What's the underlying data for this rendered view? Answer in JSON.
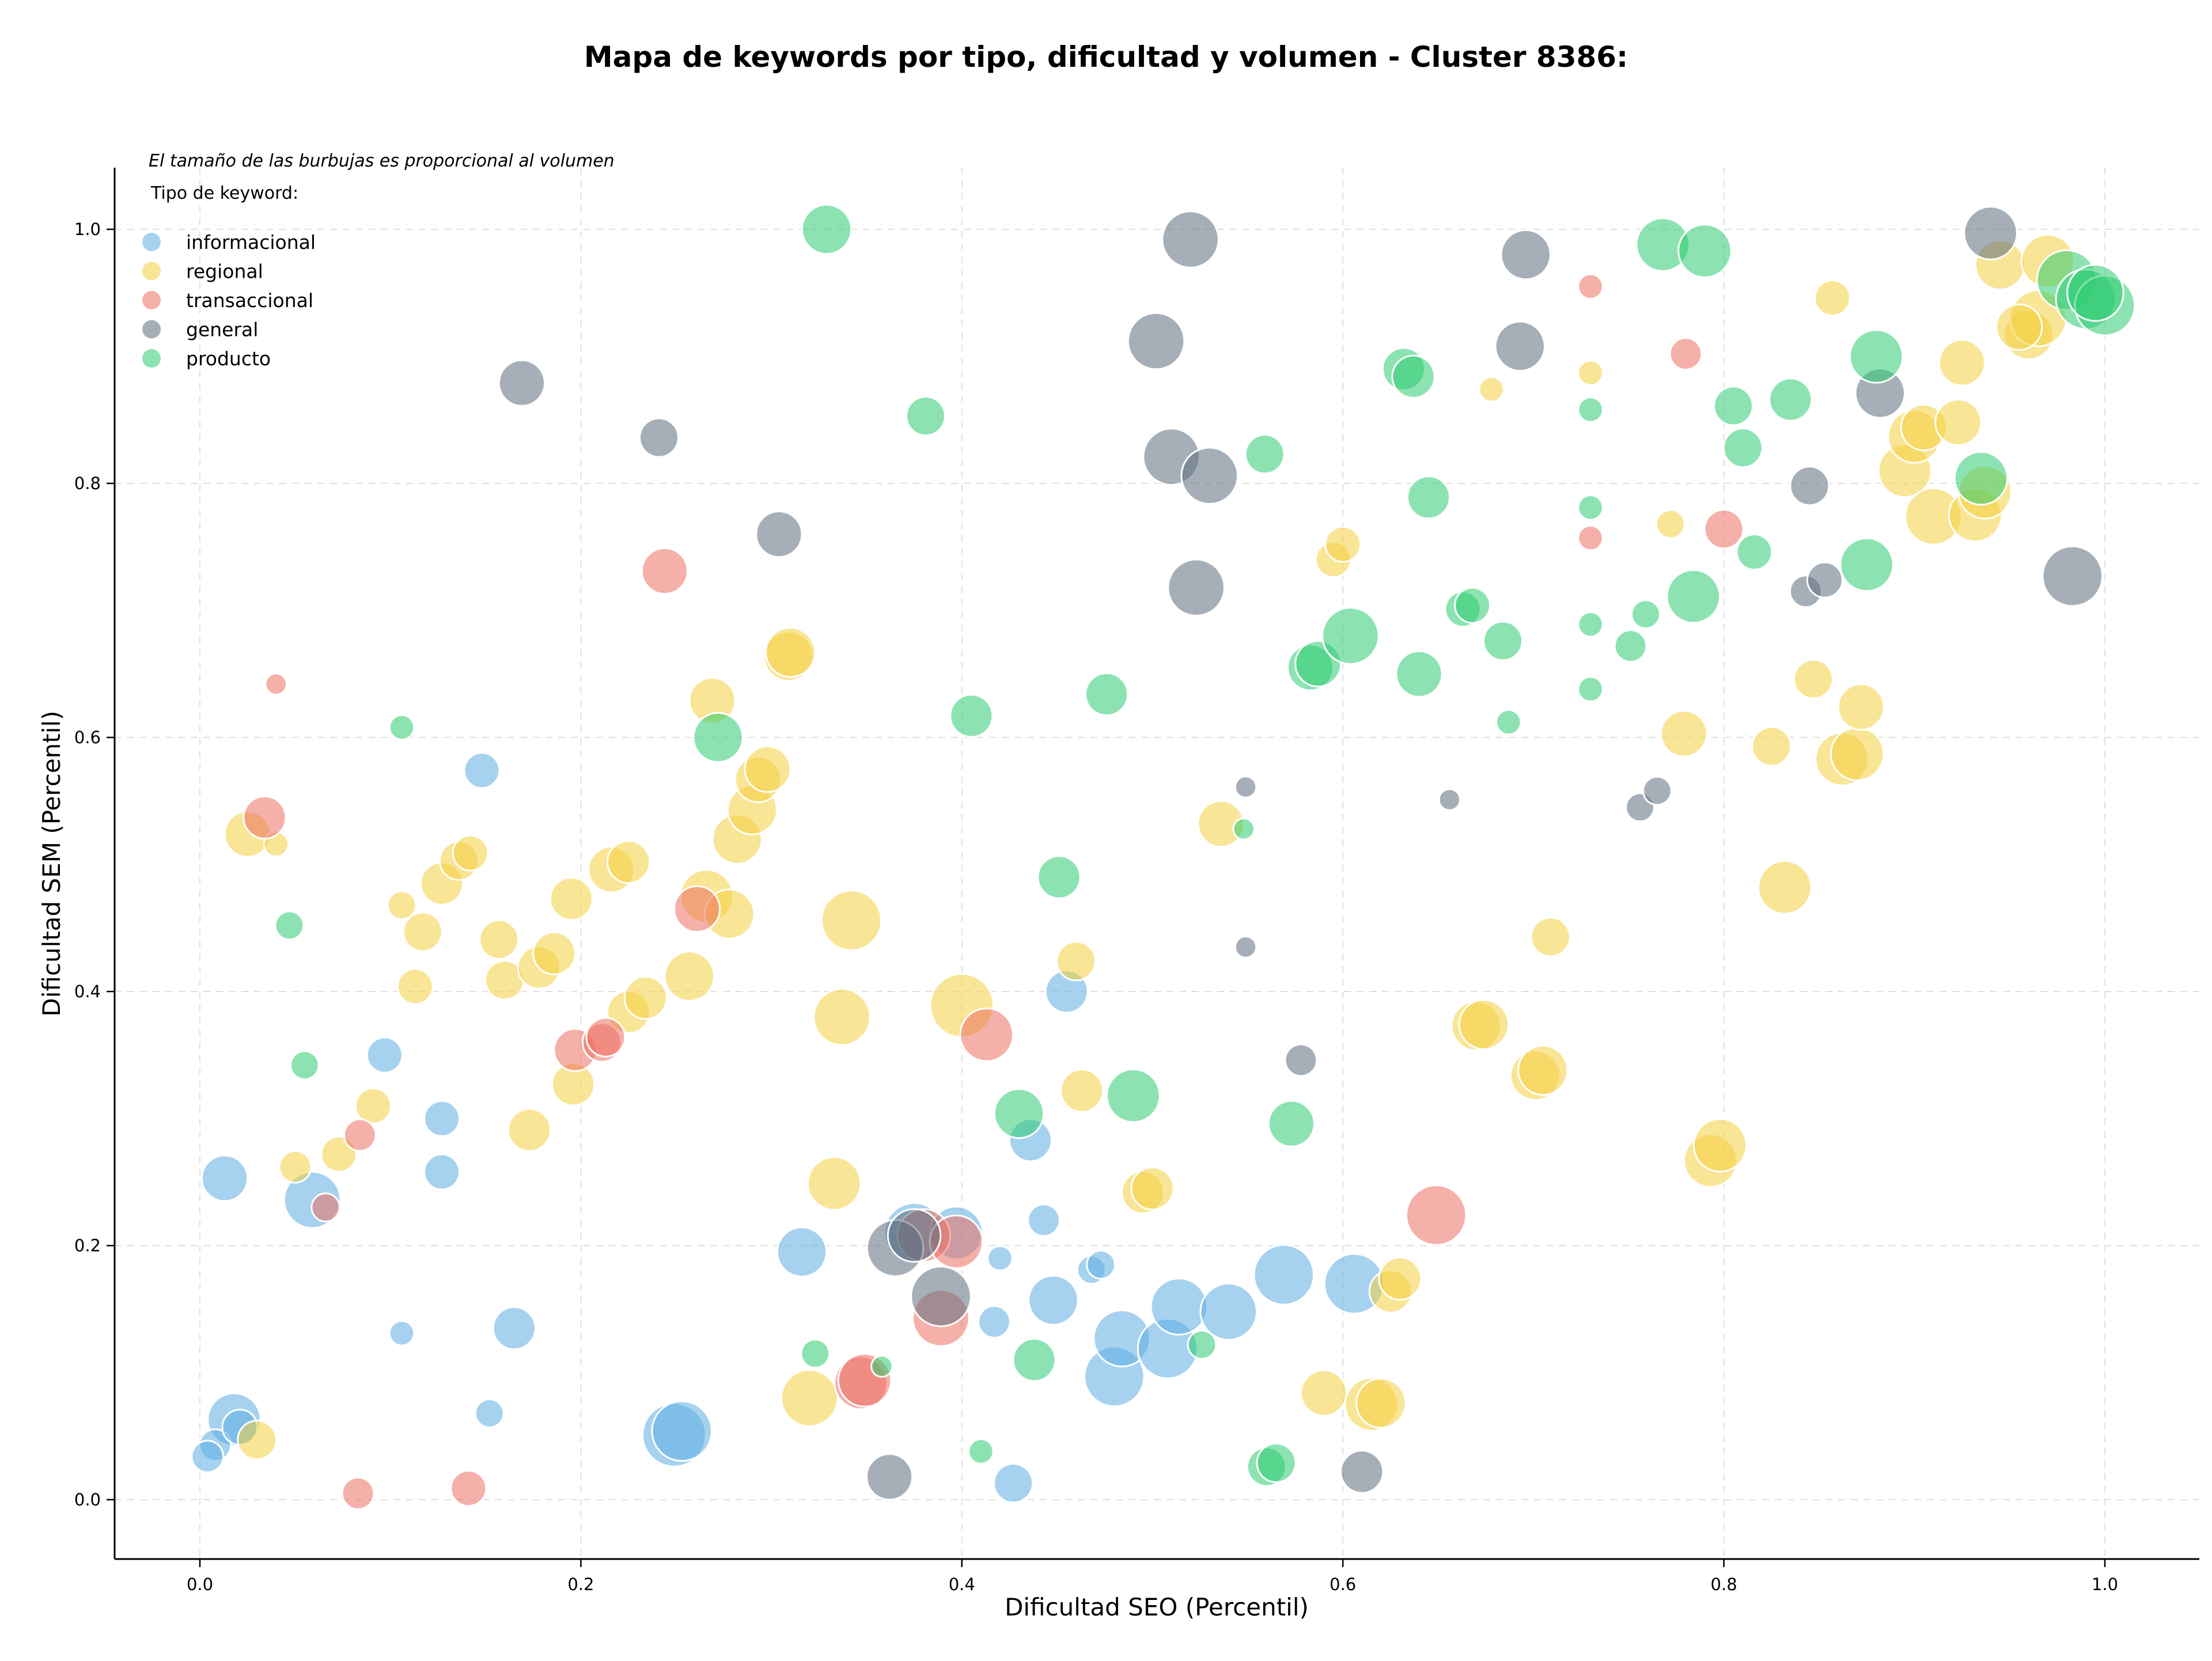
{
  "chart_data": {
    "type": "scatter",
    "title": "Mapa de keywords por tipo, dificultad y volumen - Cluster 8386:",
    "xlabel": "Dificultad SEO (Percentil)",
    "ylabel": "Dificultad SEM (Percentil)",
    "xlim": [
      -0.045,
      1.05
    ],
    "ylim": [
      -0.045,
      1.05
    ],
    "xticks": [
      "0.0",
      "0.2",
      "0.4",
      "0.6",
      "0.8",
      "1.0"
    ],
    "yticks": [
      "0.0",
      "0.2",
      "0.4",
      "0.6",
      "0.8",
      "1.0"
    ],
    "grid": true,
    "size_note": "El tamaño de las burbujas es proporcional al volumen",
    "legend_title": "Tipo de keyword:",
    "legend_position": "top-left",
    "series": [
      {
        "name": "informacional",
        "color": "#5dade2",
        "points": [
          [
            0.013,
            0.253,
            13
          ],
          [
            0.059,
            0.236,
            16
          ],
          [
            0.018,
            0.063,
            15
          ],
          [
            0.008,
            0.043,
            9
          ],
          [
            0.004,
            0.034,
            9
          ],
          [
            0.021,
            0.057,
            10
          ],
          [
            0.097,
            0.35,
            10
          ],
          [
            0.127,
            0.3,
            10
          ],
          [
            0.127,
            0.258,
            10
          ],
          [
            0.148,
            0.574,
            10
          ],
          [
            0.106,
            0.131,
            7
          ],
          [
            0.165,
            0.135,
            12
          ],
          [
            0.152,
            0.068,
            8
          ],
          [
            0.249,
            0.051,
            18
          ],
          [
            0.253,
            0.054,
            17
          ],
          [
            0.316,
            0.195,
            14
          ],
          [
            0.375,
            0.21,
            17
          ],
          [
            0.397,
            0.21,
            15
          ],
          [
            0.42,
            0.19,
            7
          ],
          [
            0.417,
            0.14,
            9
          ],
          [
            0.427,
            0.013,
            11
          ],
          [
            0.436,
            0.283,
            12
          ],
          [
            0.443,
            0.22,
            9
          ],
          [
            0.448,
            0.157,
            14
          ],
          [
            0.455,
            0.4,
            12
          ],
          [
            0.468,
            0.181,
            8
          ],
          [
            0.473,
            0.185,
            8
          ],
          [
            0.48,
            0.097,
            17
          ],
          [
            0.484,
            0.127,
            16
          ],
          [
            0.508,
            0.119,
            17
          ],
          [
            0.514,
            0.152,
            16
          ],
          [
            0.54,
            0.148,
            16
          ],
          [
            0.569,
            0.177,
            17
          ],
          [
            0.606,
            0.17,
            17
          ]
        ]
      },
      {
        "name": "regional",
        "color": "#f4d03f",
        "points": [
          [
            0.025,
            0.524,
            13
          ],
          [
            0.04,
            0.516,
            7
          ],
          [
            0.03,
            0.047,
            11
          ],
          [
            0.05,
            0.262,
            9
          ],
          [
            0.073,
            0.272,
            10
          ],
          [
            0.091,
            0.31,
            10
          ],
          [
            0.106,
            0.468,
            8
          ],
          [
            0.113,
            0.404,
            10
          ],
          [
            0.117,
            0.447,
            11
          ],
          [
            0.127,
            0.485,
            12
          ],
          [
            0.136,
            0.503,
            11
          ],
          [
            0.142,
            0.509,
            10
          ],
          [
            0.157,
            0.441,
            11
          ],
          [
            0.16,
            0.409,
            11
          ],
          [
            0.173,
            0.291,
            12
          ],
          [
            0.178,
            0.419,
            12
          ],
          [
            0.186,
            0.43,
            12
          ],
          [
            0.195,
            0.473,
            12
          ],
          [
            0.196,
            0.327,
            12
          ],
          [
            0.216,
            0.496,
            13
          ],
          [
            0.225,
            0.502,
            12
          ],
          [
            0.225,
            0.384,
            12
          ],
          [
            0.234,
            0.395,
            12
          ],
          [
            0.257,
            0.412,
            14
          ],
          [
            0.269,
            0.629,
            13
          ],
          [
            0.266,
            0.475,
            15
          ],
          [
            0.278,
            0.461,
            14
          ],
          [
            0.282,
            0.52,
            14
          ],
          [
            0.29,
            0.543,
            14
          ],
          [
            0.293,
            0.567,
            13
          ],
          [
            0.298,
            0.575,
            13
          ],
          [
            0.309,
            0.664,
            14
          ],
          [
            0.31,
            0.667,
            14
          ],
          [
            0.333,
            0.249,
            15
          ],
          [
            0.337,
            0.38,
            16
          ],
          [
            0.342,
            0.456,
            17
          ],
          [
            0.32,
            0.08,
            16
          ],
          [
            0.4,
            0.389,
            18
          ],
          [
            0.46,
            0.424,
            11
          ],
          [
            0.463,
            0.322,
            12
          ],
          [
            0.495,
            0.242,
            12
          ],
          [
            0.5,
            0.245,
            12
          ],
          [
            0.536,
            0.532,
            13
          ],
          [
            0.595,
            0.74,
            10
          ],
          [
            0.6,
            0.752,
            10
          ],
          [
            0.59,
            0.084,
            13
          ],
          [
            0.615,
            0.075,
            15
          ],
          [
            0.62,
            0.076,
            14
          ],
          [
            0.625,
            0.164,
            12
          ],
          [
            0.63,
            0.174,
            12
          ],
          [
            0.67,
            0.373,
            14
          ],
          [
            0.674,
            0.374,
            14
          ],
          [
            0.678,
            0.874,
            7
          ],
          [
            0.701,
            0.334,
            14
          ],
          [
            0.705,
            0.338,
            14
          ],
          [
            0.709,
            0.443,
            11
          ],
          [
            0.73,
            0.887,
            7
          ],
          [
            0.772,
            0.768,
            8
          ],
          [
            0.779,
            0.603,
            13
          ],
          [
            0.793,
            0.267,
            15
          ],
          [
            0.798,
            0.279,
            15
          ],
          [
            0.825,
            0.593,
            11
          ],
          [
            0.832,
            0.482,
            15
          ],
          [
            0.847,
            0.646,
            11
          ],
          [
            0.857,
            0.946,
            10
          ],
          [
            0.862,
            0.583,
            15
          ],
          [
            0.87,
            0.587,
            15
          ],
          [
            0.872,
            0.624,
            13
          ],
          [
            0.895,
            0.81,
            15
          ],
          [
            0.9,
            0.837,
            15
          ],
          [
            0.905,
            0.844,
            13
          ],
          [
            0.91,
            0.774,
            16
          ],
          [
            0.923,
            0.848,
            13
          ],
          [
            0.925,
            0.895,
            13
          ],
          [
            0.932,
            0.775,
            15
          ],
          [
            0.937,
            0.793,
            15
          ],
          [
            0.945,
            0.972,
            14
          ],
          [
            0.96,
            0.917,
            14
          ],
          [
            0.965,
            0.93,
            16
          ],
          [
            0.97,
            0.975,
            15
          ],
          [
            0.955,
            0.923,
            13
          ]
        ]
      },
      {
        "name": "transaccional",
        "color": "#ec7063",
        "points": [
          [
            0.04,
            0.642,
            6
          ],
          [
            0.034,
            0.537,
            12
          ],
          [
            0.066,
            0.23,
            8
          ],
          [
            0.084,
            0.287,
            9
          ],
          [
            0.083,
            0.005,
            9
          ],
          [
            0.141,
            0.009,
            10
          ],
          [
            0.197,
            0.354,
            12
          ],
          [
            0.211,
            0.36,
            11
          ],
          [
            0.213,
            0.364,
            11
          ],
          [
            0.244,
            0.731,
            13
          ],
          [
            0.261,
            0.465,
            13
          ],
          [
            0.347,
            0.092,
            15
          ],
          [
            0.349,
            0.094,
            15
          ],
          [
            0.38,
            0.208,
            15
          ],
          [
            0.389,
            0.143,
            16
          ],
          [
            0.397,
            0.203,
            15
          ],
          [
            0.413,
            0.366,
            15
          ],
          [
            0.649,
            0.224,
            17
          ],
          [
            0.73,
            0.955,
            7
          ],
          [
            0.73,
            0.757,
            7
          ],
          [
            0.78,
            0.902,
            9
          ],
          [
            0.8,
            0.764,
            11
          ]
        ]
      },
      {
        "name": "general",
        "color": "#5d6d7e",
        "points": [
          [
            0.169,
            0.879,
            13
          ],
          [
            0.241,
            0.836,
            11
          ],
          [
            0.304,
            0.76,
            13
          ],
          [
            0.365,
            0.198,
            16
          ],
          [
            0.375,
            0.208,
            15
          ],
          [
            0.389,
            0.16,
            17
          ],
          [
            0.362,
            0.018,
            13
          ],
          [
            0.502,
            0.912,
            16
          ],
          [
            0.52,
            0.992,
            16
          ],
          [
            0.51,
            0.821,
            16
          ],
          [
            0.53,
            0.806,
            16
          ],
          [
            0.523,
            0.718,
            16
          ],
          [
            0.549,
            0.561,
            6
          ],
          [
            0.549,
            0.435,
            6
          ],
          [
            0.578,
            0.346,
            9
          ],
          [
            0.61,
            0.022,
            12
          ],
          [
            0.656,
            0.551,
            6
          ],
          [
            0.693,
            0.908,
            14
          ],
          [
            0.696,
            0.98,
            14
          ],
          [
            0.756,
            0.545,
            8
          ],
          [
            0.765,
            0.558,
            8
          ],
          [
            0.843,
            0.715,
            9
          ],
          [
            0.845,
            0.798,
            11
          ],
          [
            0.853,
            0.724,
            10
          ],
          [
            0.882,
            0.871,
            14
          ],
          [
            0.94,
            0.997,
            15
          ],
          [
            0.983,
            0.727,
            17
          ]
        ]
      },
      {
        "name": "producto",
        "color": "#2ecc71",
        "points": [
          [
            0.047,
            0.452,
            8
          ],
          [
            0.055,
            0.342,
            8
          ],
          [
            0.106,
            0.608,
            7
          ],
          [
            0.272,
            0.6,
            14
          ],
          [
            0.323,
            0.115,
            8
          ],
          [
            0.329,
            1.0,
            14
          ],
          [
            0.358,
            0.105,
            6
          ],
          [
            0.381,
            0.853,
            11
          ],
          [
            0.405,
            0.617,
            12
          ],
          [
            0.41,
            0.038,
            7
          ],
          [
            0.43,
            0.304,
            14
          ],
          [
            0.438,
            0.11,
            12
          ],
          [
            0.451,
            0.49,
            12
          ],
          [
            0.476,
            0.634,
            12
          ],
          [
            0.49,
            0.318,
            15
          ],
          [
            0.526,
            0.122,
            8
          ],
          [
            0.548,
            0.528,
            6
          ],
          [
            0.559,
            0.823,
            11
          ],
          [
            0.56,
            0.026,
            11
          ],
          [
            0.565,
            0.029,
            11
          ],
          [
            0.573,
            0.296,
            13
          ],
          [
            0.583,
            0.655,
            13
          ],
          [
            0.587,
            0.658,
            13
          ],
          [
            0.604,
            0.68,
            16
          ],
          [
            0.632,
            0.89,
            12
          ],
          [
            0.637,
            0.884,
            12
          ],
          [
            0.64,
            0.65,
            13
          ],
          [
            0.645,
            0.789,
            12
          ],
          [
            0.663,
            0.701,
            10
          ],
          [
            0.668,
            0.704,
            10
          ],
          [
            0.684,
            0.676,
            11
          ],
          [
            0.687,
            0.612,
            7
          ],
          [
            0.73,
            0.858,
            7
          ],
          [
            0.73,
            0.781,
            7
          ],
          [
            0.73,
            0.689,
            7
          ],
          [
            0.73,
            0.638,
            7
          ],
          [
            0.751,
            0.672,
            9
          ],
          [
            0.759,
            0.697,
            8
          ],
          [
            0.768,
            0.988,
            15
          ],
          [
            0.784,
            0.711,
            15
          ],
          [
            0.79,
            0.983,
            15
          ],
          [
            0.805,
            0.861,
            11
          ],
          [
            0.81,
            0.828,
            11
          ],
          [
            0.816,
            0.746,
            10
          ],
          [
            0.835,
            0.866,
            12
          ],
          [
            0.875,
            0.736,
            15
          ],
          [
            0.88,
            0.9,
            15
          ],
          [
            0.935,
            0.804,
            15
          ],
          [
            0.98,
            0.96,
            17
          ],
          [
            0.99,
            0.945,
            17
          ],
          [
            1.0,
            0.94,
            17
          ],
          [
            0.995,
            0.95,
            16
          ]
        ]
      }
    ]
  }
}
